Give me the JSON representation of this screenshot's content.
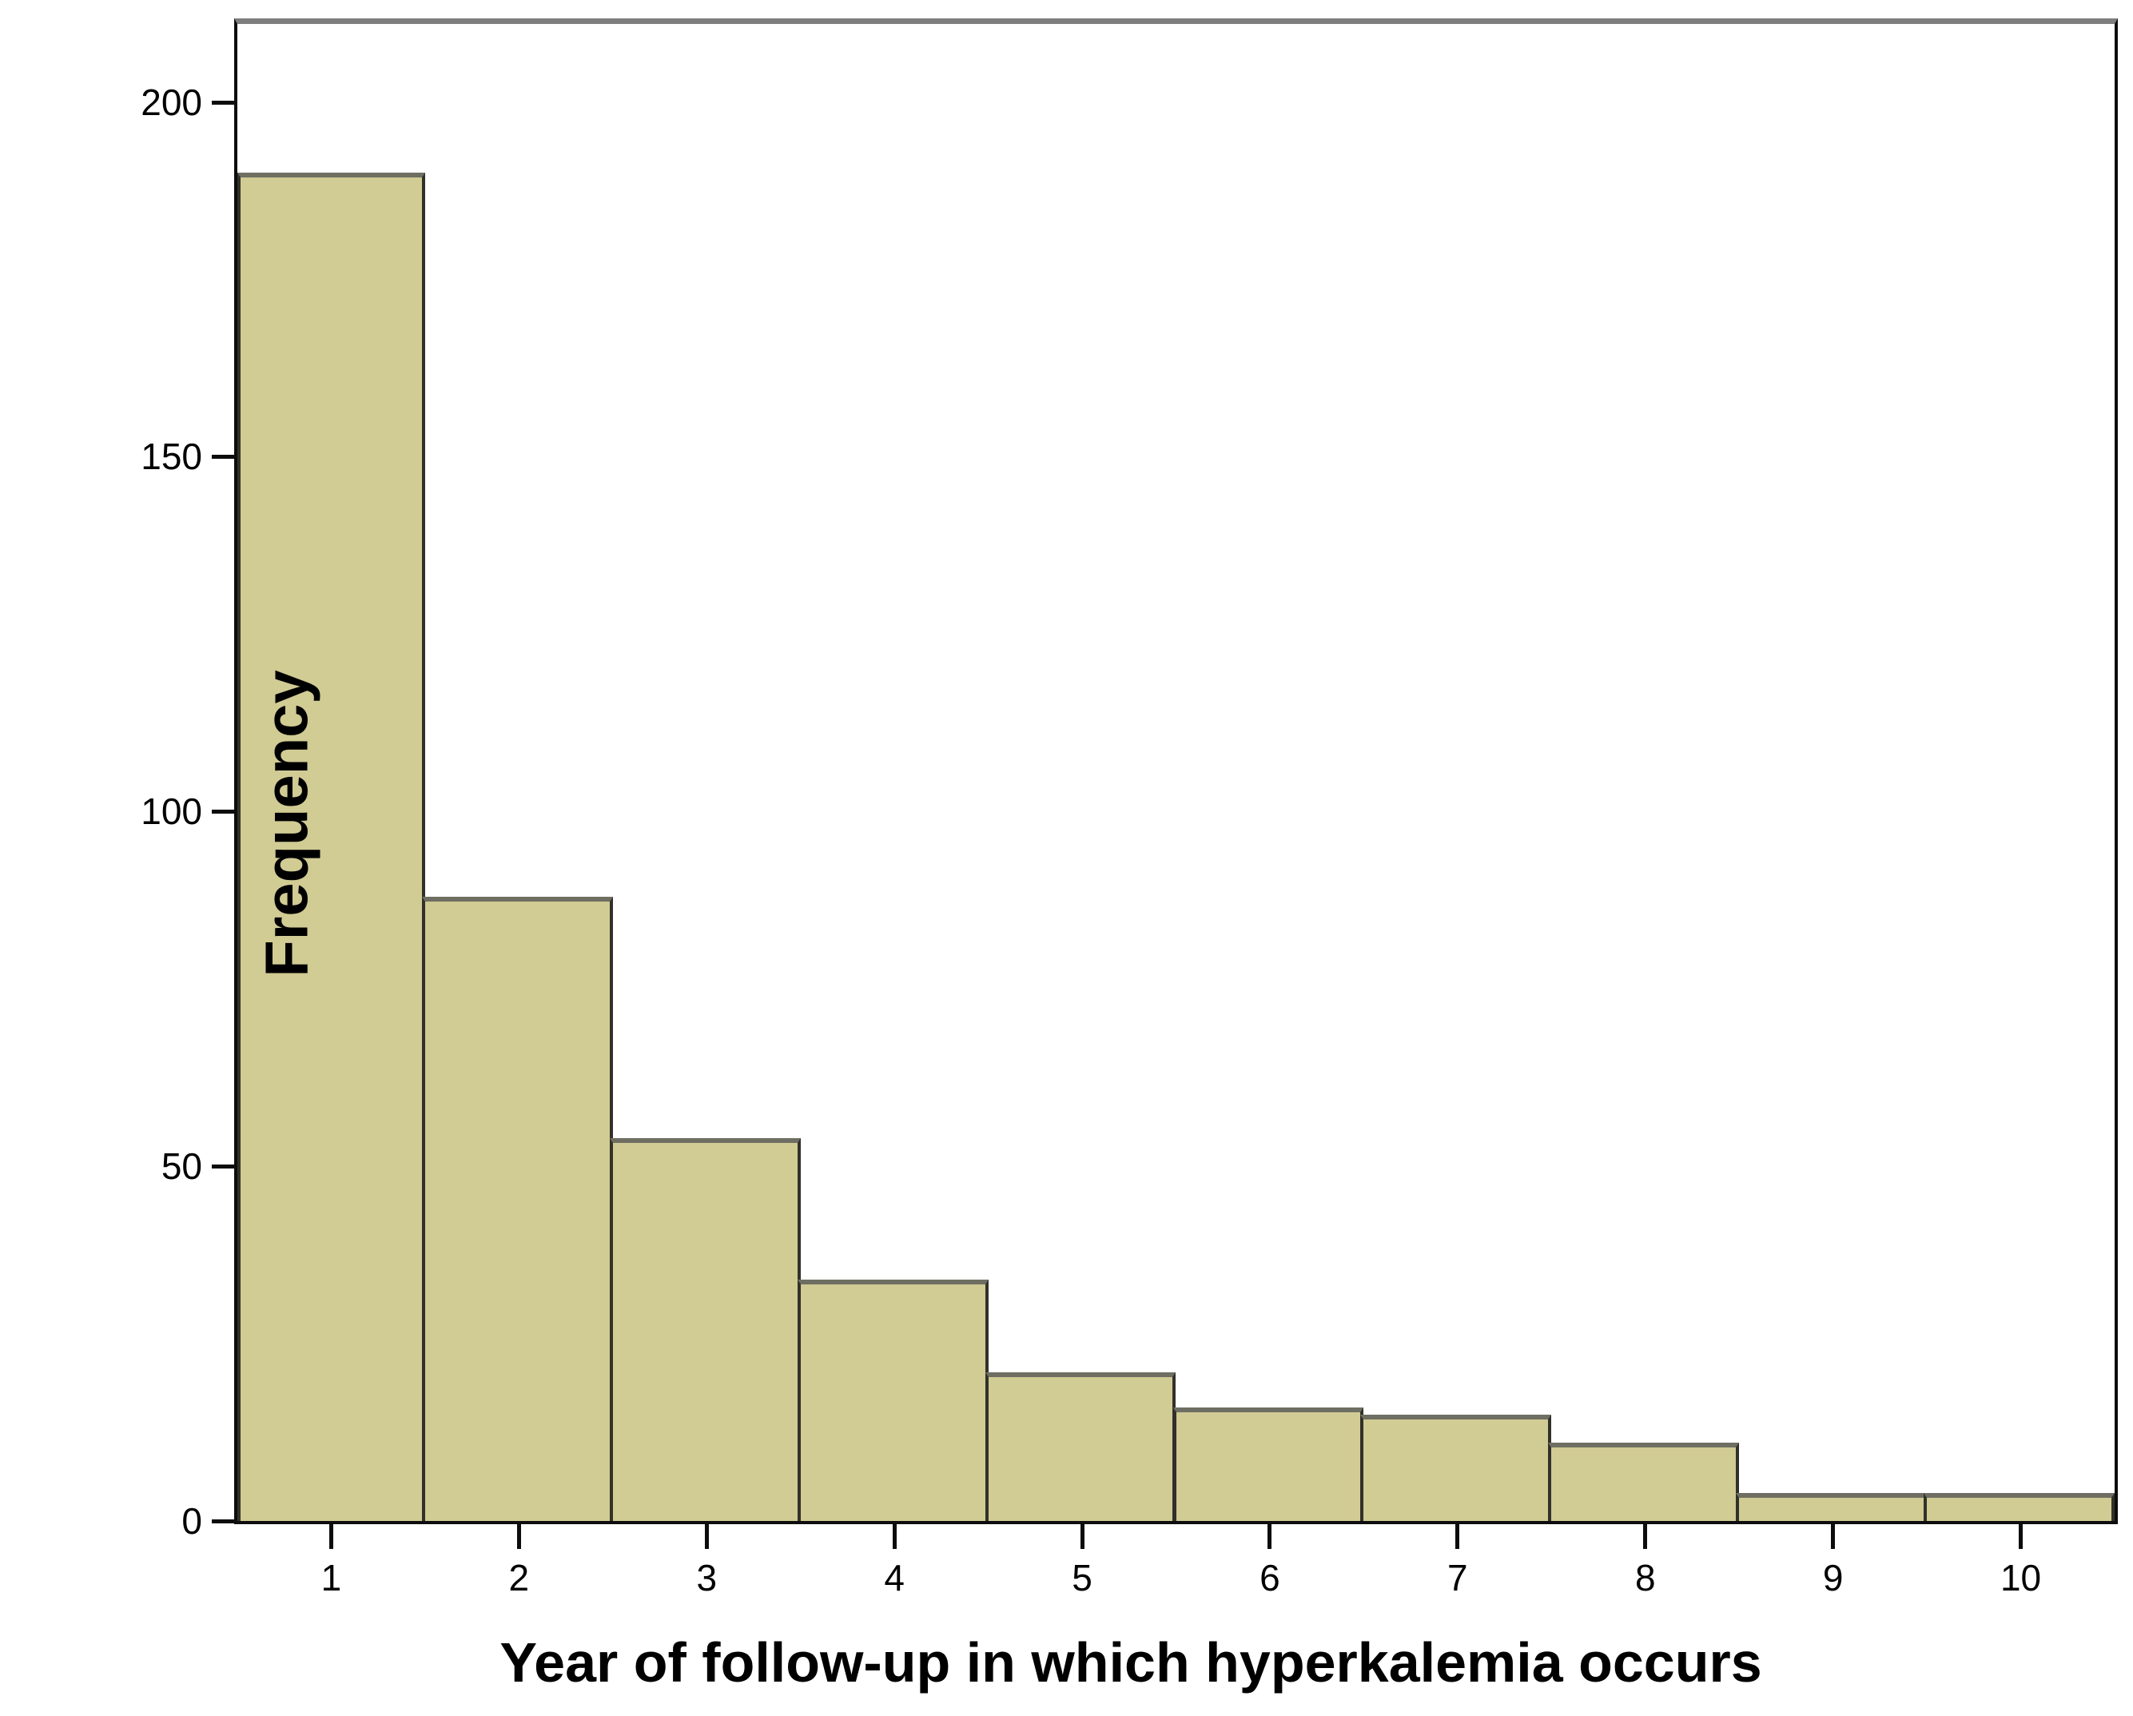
{
  "chart_data": {
    "type": "bar",
    "subtype": "histogram",
    "title": "",
    "xlabel": "Year of follow-up in which hyperkalemia occurs",
    "ylabel": "Frequency",
    "categories": [
      1,
      2,
      3,
      4,
      5,
      6,
      7,
      8,
      9,
      10
    ],
    "values": [
      190,
      88,
      54,
      34,
      21,
      16,
      15,
      11,
      4,
      4
    ],
    "yticks": [
      0,
      50,
      100,
      150,
      200
    ],
    "xticks": [
      1,
      2,
      3,
      4,
      5,
      6,
      7,
      8,
      9,
      10
    ],
    "ylim": [
      0,
      211
    ],
    "xlim": [
      0.5,
      10.5
    ],
    "grid": false,
    "legend": "none",
    "bar_fill_color": "#d1cb94",
    "bar_border_color": "#31312a",
    "bar_top_edge_color": "#6e6e62",
    "axis_color": "#0d0d0d",
    "frame_top_color": "#7e7e7e",
    "text_color": "#000000"
  }
}
